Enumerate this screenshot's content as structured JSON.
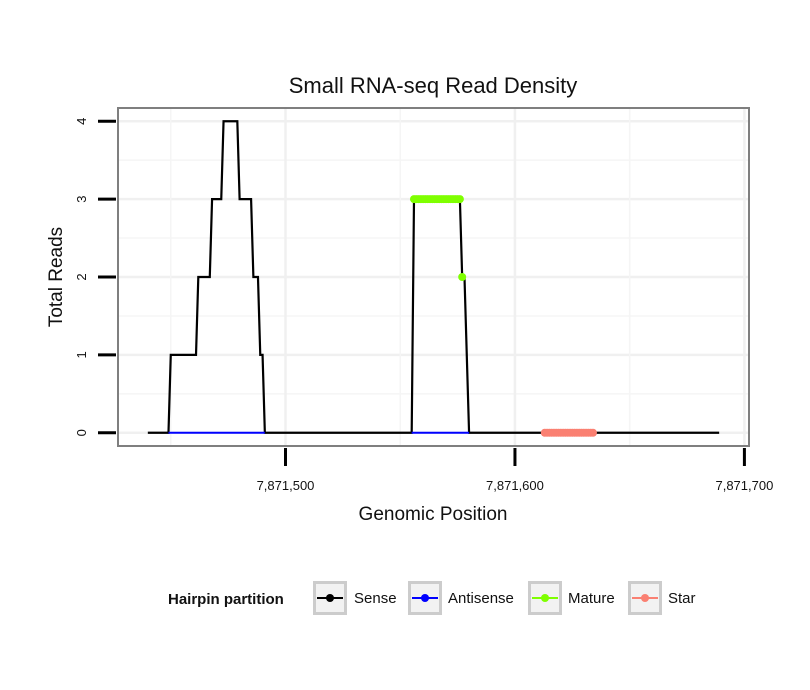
{
  "chart_data": {
    "type": "line",
    "title": "Small RNA-seq Read Density",
    "xlabel": "Genomic Position",
    "ylabel": "Total Reads",
    "xlim": [
      7871427,
      7871702
    ],
    "ylim": [
      -0.17,
      4.17
    ],
    "x_ticks": [
      7871500,
      7871600,
      7871700
    ],
    "x_tick_labels": [
      "7,871,500",
      "7,871,600",
      "7,871,700"
    ],
    "y_ticks": [
      0,
      1,
      2,
      3,
      4
    ],
    "y_tick_labels": [
      "0",
      "1",
      "2",
      "3",
      "4"
    ],
    "grid": true,
    "legend": {
      "position": "bottom",
      "title": "Hairpin partition",
      "items": [
        {
          "label": "Sense",
          "color": "#000000"
        },
        {
          "label": "Antisense",
          "color": "#0000ff"
        },
        {
          "label": "Mature",
          "color": "#7fff00"
        },
        {
          "label": "Star",
          "color": "#fa8072"
        }
      ]
    },
    "series": [
      {
        "name": "Sense",
        "color": "#000000",
        "markers": false,
        "x": [
          7871440,
          7871449,
          7871450,
          7871461,
          7871462,
          7871467,
          7871468,
          7871472,
          7871473,
          7871479,
          7871480,
          7871485,
          7871486,
          7871488,
          7871489,
          7871490,
          7871491,
          7871555,
          7871556,
          7871576,
          7871577,
          7871578,
          7871579,
          7871580,
          7871689
        ],
        "y": [
          0,
          0,
          1,
          1,
          2,
          2,
          3,
          3,
          4,
          4,
          3,
          3,
          2,
          2,
          1,
          1,
          0,
          0,
          3,
          3,
          2,
          2,
          1,
          0,
          0
        ]
      },
      {
        "name": "Antisense",
        "color": "#0000ff",
        "markers": false,
        "segments": [
          {
            "x": [
              7871449,
              7871491
            ],
            "y": [
              0,
              0
            ]
          },
          {
            "x": [
              7871555,
              7871580
            ],
            "y": [
              0,
              0
            ]
          }
        ]
      },
      {
        "name": "Mature",
        "color": "#7fff00",
        "markers": true,
        "x": [
          7871556,
          7871557,
          7871558,
          7871559,
          7871560,
          7871561,
          7871562,
          7871563,
          7871564,
          7871565,
          7871566,
          7871567,
          7871568,
          7871569,
          7871570,
          7871571,
          7871572,
          7871573,
          7871574,
          7871575,
          7871576,
          7871577
        ],
        "y": [
          3,
          3,
          3,
          3,
          3,
          3,
          3,
          3,
          3,
          3,
          3,
          3,
          3,
          3,
          3,
          3,
          3,
          3,
          3,
          3,
          3,
          2
        ]
      },
      {
        "name": "Star",
        "color": "#fa8072",
        "markers": true,
        "x": [
          7871613,
          7871614,
          7871615,
          7871616,
          7871617,
          7871618,
          7871619,
          7871620,
          7871621,
          7871622,
          7871623,
          7871624,
          7871625,
          7871626,
          7871627,
          7871628,
          7871629,
          7871630,
          7871631,
          7871632,
          7871633,
          7871634
        ],
        "y": [
          0,
          0,
          0,
          0,
          0,
          0,
          0,
          0,
          0,
          0,
          0,
          0,
          0,
          0,
          0,
          0,
          0,
          0,
          0,
          0,
          0,
          0
        ]
      }
    ]
  }
}
